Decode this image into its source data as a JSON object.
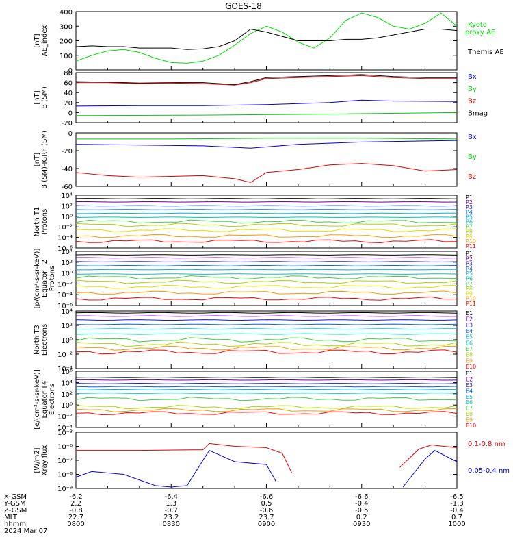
{
  "title": "GOES-18",
  "colors": {
    "black": "#000000",
    "red": "#dd0000",
    "green": "#00cc00",
    "blue": "#0000dd",
    "kyoto": "#00dd00",
    "p_colors": [
      "#000000",
      "#6a00a8",
      "#1a1ad0",
      "#0060ff",
      "#00b0e0",
      "#00c8b0",
      "#40d040",
      "#a8d400",
      "#e0e000",
      "#ff9800",
      "#ff0000"
    ],
    "e_colors": [
      "#000000",
      "#6a00a8",
      "#1a1ad0",
      "#0060ff",
      "#00b0e0",
      "#00c8b0",
      "#40d040",
      "#a8d400",
      "#ff9800",
      "#ff0000"
    ]
  },
  "panels": [
    {
      "key": "ae",
      "ylabel": [
        "AE_index",
        "[nT]"
      ],
      "yticks": [
        "400",
        "300",
        "200",
        "100",
        "0"
      ],
      "legend": [
        {
          "text": "Kyoto",
          "color": "#00dd00"
        },
        {
          "text": "proxy AE",
          "color": "#00dd00"
        },
        {
          "text": "Themis AE",
          "color": "#000000"
        }
      ]
    },
    {
      "key": "bsm",
      "ylabel": [
        "B (SM)",
        "[nT]"
      ],
      "yticks": [
        "80",
        "60",
        "40",
        "20",
        "0",
        "-20"
      ],
      "legend": [
        {
          "text": "Bx",
          "color": "#0000dd"
        },
        {
          "text": "By",
          "color": "#00cc00"
        },
        {
          "text": "Bz",
          "color": "#dd0000"
        },
        {
          "text": "Bmag",
          "color": "#000000"
        }
      ]
    },
    {
      "key": "bigrf",
      "ylabel": [
        "B (SM)-IGRF (SM)",
        "[nT]"
      ],
      "yticks": [
        "0",
        "-20",
        "-40",
        "-60"
      ],
      "legend": [
        {
          "text": "Bx",
          "color": "#0000dd"
        },
        {
          "text": "By",
          "color": "#00cc00"
        },
        {
          "text": "Bz",
          "color": "#dd0000"
        }
      ]
    },
    {
      "key": "pn",
      "ylabel": [
        "Protons",
        "North T1"
      ],
      "yticks": [
        "10⁴",
        "10²",
        "10⁰",
        "10⁻²",
        "10⁻⁴",
        "10⁻⁶"
      ],
      "legend": [
        "P1",
        "P2",
        "P3",
        "P4",
        "P5",
        "P6",
        "P7",
        "P8",
        "P9",
        "P10",
        "P11"
      ]
    },
    {
      "key": "pe",
      "ylabel": [
        "Protons",
        "Equator T2",
        "[p/(cm²-s-sr-keV)]"
      ],
      "yticks": [
        "10⁴",
        "10²",
        "10⁰",
        "10⁻²",
        "10⁻⁴",
        "10⁻⁶"
      ],
      "legend": [
        "P1",
        "P2",
        "P3",
        "P4",
        "P5",
        "P6",
        "P7",
        "P8",
        "P9",
        "P10",
        "P11"
      ]
    },
    {
      "key": "en",
      "ylabel": [
        "Electrons",
        "North T3"
      ],
      "yticks": [
        "10⁴",
        "10²",
        "10⁰",
        "10⁻²",
        "10⁻⁴"
      ],
      "legend": [
        "E1",
        "E2",
        "E3",
        "E4",
        "E5",
        "E6",
        "E7",
        "E8",
        "E9",
        "E10"
      ]
    },
    {
      "key": "ee",
      "ylabel": [
        "Electrons",
        "Equator T4",
        "[e/(cm²-s-sr-keV)]"
      ],
      "yticks": [
        "10⁶",
        "10⁴",
        "10²",
        "10⁰",
        "10⁻²",
        "10⁻⁴"
      ],
      "legend": [
        "E1",
        "E2",
        "E3",
        "E4",
        "E5",
        "E6",
        "E7",
        "E8",
        "E9",
        "E10"
      ]
    },
    {
      "key": "xray",
      "ylabel": [
        "Xray flux",
        "[W/m2]"
      ],
      "yticks": [
        "10⁻³",
        "10⁻⁶",
        "10⁻⁷",
        "10⁻⁸",
        "10⁻⁹"
      ],
      "legend": [
        {
          "text": "0.1-0.8 nm",
          "color": "#dd0000"
        },
        {
          "text": "0.05-0.4 nm",
          "color": "#0000dd"
        }
      ]
    }
  ],
  "ephemeris": {
    "labels": [
      "X-GSM",
      "Y-GSM",
      "Z-GSM",
      "MLT",
      "hhmm"
    ],
    "date": "2024 Mar 07",
    "columns": [
      [
        "-6.2",
        "2.2",
        "-0.8",
        "22.7",
        "0800"
      ],
      [
        "-6.4",
        "1.3",
        "-0.7",
        "23.2",
        "0830"
      ],
      [
        "-6.6",
        "0.5",
        "-0.6",
        "23.7",
        "0900"
      ],
      [
        "-6.6",
        "-0.4",
        "-0.5",
        "0.2",
        "0930"
      ],
      [
        "-6.5",
        "-1.3",
        "-0.4",
        "0.7",
        "1000"
      ]
    ]
  },
  "chart_data": {
    "type": "line",
    "title": "GOES-18",
    "x_hhmm": [
      "0800",
      "0830",
      "0900",
      "0930",
      "1000"
    ],
    "panels": {
      "ae": {
        "ylim": [
          0,
          400
        ],
        "series": [
          {
            "name": "Kyoto proxy AE",
            "color": "#00dd00",
            "x": [
              0,
              5,
              10,
              15,
              20,
              25,
              30,
              35,
              40,
              45,
              50,
              55,
              60,
              65,
              70,
              75,
              80,
              85,
              90,
              95,
              100,
              105,
              110,
              115,
              120
            ],
            "values": [
              60,
              100,
              130,
              140,
              120,
              80,
              50,
              45,
              60,
              100,
              170,
              250,
              300,
              260,
              190,
              150,
              220,
              340,
              390,
              360,
              300,
              280,
              320,
              390,
              300
            ]
          },
          {
            "name": "Themis AE",
            "color": "#000000",
            "x": [
              0,
              5,
              10,
              15,
              20,
              25,
              30,
              35,
              40,
              45,
              50,
              55,
              60,
              65,
              70,
              75,
              80,
              85,
              90,
              95,
              100,
              105,
              110,
              115,
              120
            ],
            "values": [
              160,
              165,
              160,
              160,
              150,
              150,
              150,
              140,
              145,
              160,
              200,
              280,
              260,
              230,
              200,
              200,
              200,
              210,
              210,
              220,
              240,
              260,
              280,
              280,
              270
            ]
          }
        ]
      },
      "bsm": {
        "ylim": [
          -20,
          80
        ],
        "series": [
          {
            "name": "Bmag",
            "color": "#000000",
            "x": [
              0,
              10,
              20,
              30,
              40,
              50,
              55,
              60,
              70,
              80,
              90,
              100,
              110,
              120
            ],
            "values": [
              62,
              61,
              59,
              60,
              60,
              56,
              62,
              70,
              72,
              74,
              76,
              72,
              70,
              70
            ]
          },
          {
            "name": "Bz",
            "color": "#dd0000",
            "x": [
              0,
              10,
              20,
              30,
              40,
              50,
              55,
              60,
              70,
              80,
              90,
              100,
              110,
              120
            ],
            "values": [
              60,
              60,
              58,
              59,
              58,
              55,
              60,
              68,
              70,
              72,
              74,
              70,
              68,
              68
            ]
          },
          {
            "name": "Bx",
            "color": "#0000dd",
            "x": [
              0,
              20,
              40,
              60,
              80,
              90,
              100,
              120
            ],
            "values": [
              13,
              14,
              14,
              16,
              20,
              25,
              23,
              22
            ]
          },
          {
            "name": "By",
            "color": "#00cc00",
            "x": [
              0,
              40,
              80,
              120
            ],
            "values": [
              -6,
              -5,
              -3,
              0
            ]
          }
        ]
      },
      "bigrf": {
        "ylim": [
          -60,
          10
        ],
        "series": [
          {
            "name": "By",
            "color": "#00cc00",
            "x": [
              0,
              30,
              60,
              90,
              120
            ],
            "values": [
              2,
              2,
              3,
              3,
              2
            ]
          },
          {
            "name": "Bx",
            "color": "#0000dd",
            "x": [
              0,
              20,
              40,
              55,
              70,
              90,
              120
            ],
            "values": [
              -5,
              -6,
              -7,
              -10,
              -5,
              -2,
              0
            ]
          },
          {
            "name": "Bz",
            "color": "#dd0000",
            "x": [
              0,
              10,
              20,
              30,
              40,
              50,
              55,
              60,
              70,
              80,
              90,
              100,
              110,
              120
            ],
            "values": [
              -42,
              -46,
              -48,
              -47,
              -46,
              -50,
              -55,
              -42,
              -38,
              -32,
              -30,
              -33,
              -40,
              -38
            ]
          }
        ]
      },
      "pn": {
        "ylim_log10": [
          -7,
          4
        ],
        "levels": [
          3.3,
          2.6,
          1.8,
          1.0,
          0.2,
          -0.6,
          -1.5,
          -2.2,
          -3.3,
          -4.5,
          -5.6
        ]
      },
      "pe": {
        "ylim_log10": [
          -7,
          4
        ],
        "levels": [
          3.3,
          2.7,
          1.9,
          1.1,
          0.3,
          -0.6,
          -1.3,
          -2.2,
          -3.2,
          -4.4,
          -5.6
        ]
      },
      "en": {
        "ylim_log10": [
          -5,
          4
        ],
        "levels": [
          3.7,
          3.2,
          2.6,
          1.9,
          1.2,
          0.4,
          -0.5,
          -1.2,
          -1.8,
          -2.4
        ]
      },
      "ee": {
        "ylim_log10": [
          -5,
          6
        ],
        "levels": [
          4.8,
          4.3,
          3.6,
          3.0,
          2.4,
          1.7,
          0.6,
          -1.0,
          -1.6,
          -2.2
        ]
      },
      "xray": {
        "ylim_log10": [
          -9,
          -5
        ],
        "series": [
          {
            "name": "0.1-0.8 nm",
            "color": "#dd0000"
          },
          {
            "name": "0.05-0.4 nm",
            "color": "#0000dd"
          }
        ]
      }
    }
  }
}
